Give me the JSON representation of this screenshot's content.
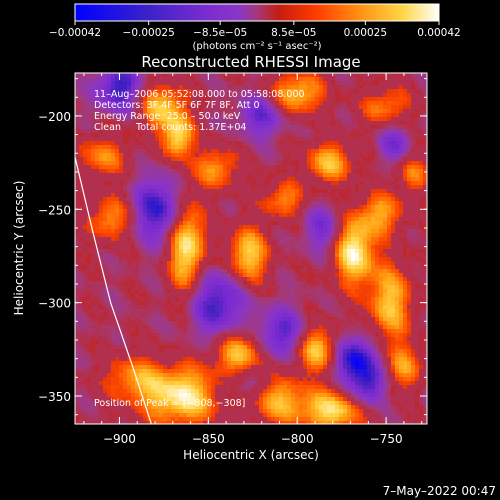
{
  "chart_data": {
    "type": "heatmap",
    "title": "Reconstructed RHESSI Image",
    "xlabel": "Heliocentric X (arcsec)",
    "ylabel": "Heliocentric Y (arcsec)",
    "xlim": [
      -925,
      -727
    ],
    "ylim": [
      -365,
      -177
    ],
    "x_ticks": [
      -900,
      -850,
      -800,
      -750
    ],
    "x_tick_labels": [
      "−900",
      "−850",
      "−800",
      "−750"
    ],
    "y_ticks": [
      -200,
      -250,
      -300,
      -350
    ],
    "y_tick_labels": [
      "−200",
      "−250",
      "−300",
      "−350"
    ],
    "colorbar": {
      "range": [
        -0.00042,
        0.00042
      ],
      "ticks": [
        -0.00042,
        -0.00025,
        -8.5e-05,
        8.5e-05,
        0.00025,
        0.00042
      ],
      "tick_labels": [
        "−0.00042",
        "−0.00025",
        "−8.5e−05",
        "8.5e−05",
        "0.00025",
        "0.00042"
      ],
      "units": "(photons cm⁻² s⁻¹ asec⁻²)",
      "colormap": [
        "#0000ff",
        "#3f1fbf",
        "#7a2ad0",
        "#8a35c8",
        "#a33a78",
        "#c82010",
        "#ff4a00",
        "#ff9d10",
        "#ffd84a",
        "#ffffff"
      ]
    },
    "annotations": {
      "time_range": "11–Aug–2006 05:52:08.000 to 05:58:08.000",
      "detectors": "Detectors: 3F 4F 5F 6F 7F 8F, Att 0",
      "energy_range": "Energy Range: 25.0 – 50.0 keV",
      "clean_counts": "Clean     Total counts: 1.37E+04",
      "peak": "Position of Peak = [−808,−308]"
    },
    "peak_position": [
      -808,
      -308
    ],
    "limb_curve": [
      [
        -925,
        -222
      ],
      [
        -915,
        -262
      ],
      [
        -905,
        -300
      ],
      [
        -893,
        -333
      ],
      [
        -882,
        -365
      ]
    ],
    "grid": false,
    "legend": "none",
    "features": [
      {
        "x": -862,
        "y": -270,
        "v": 1.0,
        "sx": 7,
        "sy": 18
      },
      {
        "x": -876,
        "y": -195,
        "v": 0.75,
        "sx": 10,
        "sy": 9
      },
      {
        "x": -867,
        "y": -212,
        "v": 0.85,
        "sx": 6,
        "sy": 8
      },
      {
        "x": -865,
        "y": -350,
        "v": 0.95,
        "sx": 16,
        "sy": 11
      },
      {
        "x": -893,
        "y": -340,
        "v": 0.5,
        "sx": 12,
        "sy": 9
      },
      {
        "x": -828,
        "y": -275,
        "v": 0.85,
        "sx": 8,
        "sy": 11
      },
      {
        "x": -832,
        "y": -328,
        "v": 0.8,
        "sx": 10,
        "sy": 9
      },
      {
        "x": -812,
        "y": -352,
        "v": 0.7,
        "sx": 12,
        "sy": 9
      },
      {
        "x": -790,
        "y": -325,
        "v": 0.85,
        "sx": 10,
        "sy": 9
      },
      {
        "x": -780,
        "y": -358,
        "v": 0.85,
        "sx": 13,
        "sy": 8
      },
      {
        "x": -768,
        "y": -272,
        "v": 1.0,
        "sx": 8,
        "sy": 13
      },
      {
        "x": -748,
        "y": -300,
        "v": 0.75,
        "sx": 9,
        "sy": 15
      },
      {
        "x": -752,
        "y": -252,
        "v": 0.6,
        "sx": 9,
        "sy": 8
      },
      {
        "x": -782,
        "y": -225,
        "v": 0.7,
        "sx": 10,
        "sy": 8
      },
      {
        "x": -800,
        "y": -188,
        "v": 0.75,
        "sx": 11,
        "sy": 8
      },
      {
        "x": -750,
        "y": -195,
        "v": 0.55,
        "sx": 10,
        "sy": 8
      },
      {
        "x": -905,
        "y": -255,
        "v": 0.6,
        "sx": 9,
        "sy": 9
      },
      {
        "x": -910,
        "y": -222,
        "v": 0.55,
        "sx": 10,
        "sy": 8
      },
      {
        "x": -845,
        "y": -228,
        "v": 0.6,
        "sx": 9,
        "sy": 8
      },
      {
        "x": -808,
        "y": -245,
        "v": 0.55,
        "sx": 9,
        "sy": 7
      },
      {
        "x": -740,
        "y": -335,
        "v": 0.55,
        "sx": 8,
        "sy": 9
      },
      {
        "x": -735,
        "y": -230,
        "v": 0.5,
        "sx": 7,
        "sy": 8
      },
      {
        "x": -878,
        "y": -250,
        "v": -0.8,
        "sx": 10,
        "sy": 12
      },
      {
        "x": -845,
        "y": -300,
        "v": -0.75,
        "sx": 11,
        "sy": 13
      },
      {
        "x": -808,
        "y": -318,
        "v": -0.75,
        "sx": 10,
        "sy": 10
      },
      {
        "x": -768,
        "y": -330,
        "v": -0.9,
        "sx": 9,
        "sy": 9
      },
      {
        "x": -760,
        "y": -345,
        "v": -0.7,
        "sx": 7,
        "sy": 8
      },
      {
        "x": -900,
        "y": -185,
        "v": -0.8,
        "sx": 9,
        "sy": 9
      },
      {
        "x": -820,
        "y": -200,
        "v": -0.6,
        "sx": 9,
        "sy": 8
      },
      {
        "x": -785,
        "y": -260,
        "v": -0.5,
        "sx": 8,
        "sy": 9
      },
      {
        "x": -745,
        "y": -215,
        "v": -0.5,
        "sx": 7,
        "sy": 8
      },
      {
        "x": -830,
        "y": -345,
        "v": -0.45,
        "sx": 10,
        "sy": 8
      }
    ]
  },
  "footer": {
    "datestamp": "7–May–2022 00:47"
  }
}
